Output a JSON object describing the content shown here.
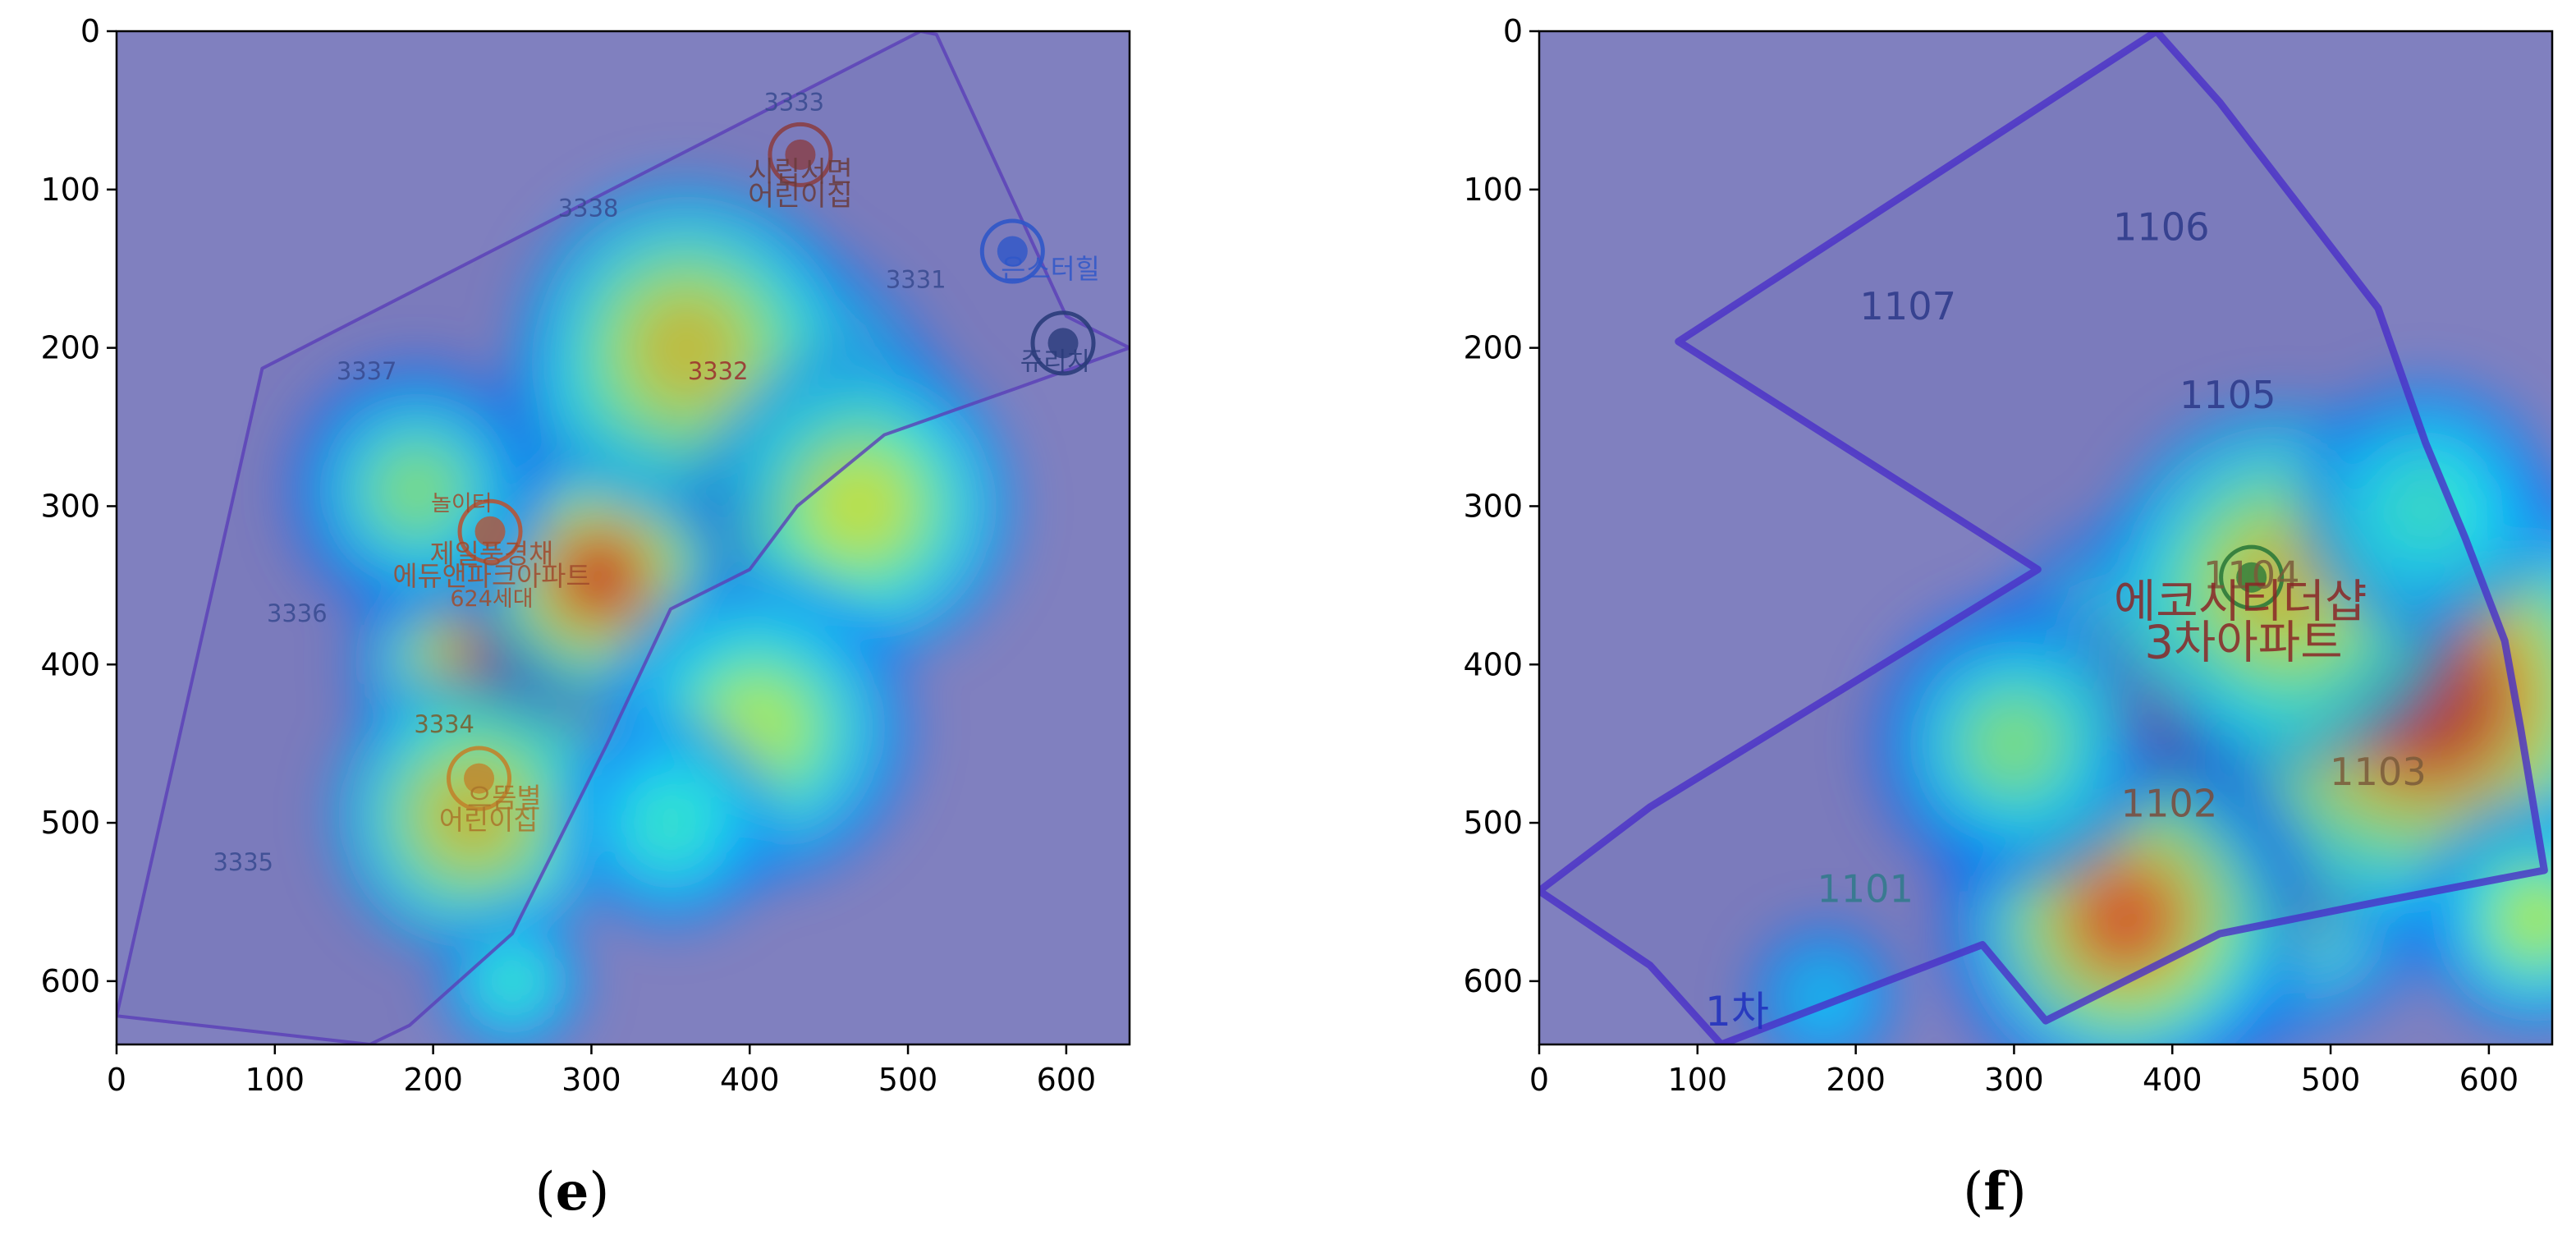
{
  "chart_data": [
    {
      "type": "heatmap",
      "panel_label": "(e)",
      "panel_letter": "e",
      "xlim": [
        0,
        640
      ],
      "ylim": [
        640,
        0
      ],
      "xticks": [
        0,
        100,
        200,
        300,
        400,
        500,
        600
      ],
      "yticks": [
        0,
        100,
        200,
        300,
        400,
        500,
        600
      ],
      "background": "#8181c0",
      "boundary_color": "#5a3fb8",
      "boundary": [
        [
          0,
          622
        ],
        [
          92,
          213
        ],
        [
          508,
          0
        ],
        [
          518,
          2
        ],
        [
          600,
          180
        ],
        [
          640,
          200
        ],
        [
          570,
          225
        ],
        [
          485,
          255
        ],
        [
          430,
          300
        ],
        [
          400,
          340
        ],
        [
          350,
          365
        ],
        [
          310,
          450
        ],
        [
          250,
          570
        ],
        [
          185,
          628
        ],
        [
          160,
          640
        ],
        [
          0,
          622
        ]
      ],
      "hotspots": [
        {
          "x": 385,
          "y": 270,
          "radius": 150,
          "intensity": 1.0
        },
        {
          "x": 255,
          "y": 400,
          "radius": 110,
          "intensity": 0.95
        },
        {
          "x": 305,
          "y": 345,
          "radius": 90,
          "intensity": 0.9
        },
        {
          "x": 360,
          "y": 200,
          "radius": 130,
          "intensity": 0.7
        },
        {
          "x": 470,
          "y": 300,
          "radius": 120,
          "intensity": 0.65
        },
        {
          "x": 225,
          "y": 495,
          "radius": 110,
          "intensity": 0.7
        },
        {
          "x": 405,
          "y": 440,
          "radius": 120,
          "intensity": 0.6
        },
        {
          "x": 190,
          "y": 290,
          "radius": 100,
          "intensity": 0.55
        },
        {
          "x": 250,
          "y": 600,
          "radius": 70,
          "intensity": 0.45
        },
        {
          "x": 350,
          "y": 500,
          "radius": 100,
          "intensity": 0.45
        }
      ],
      "map_labels": [
        {
          "text": "시립서면",
          "x": 432,
          "y": 95,
          "size": 18,
          "color": "#6a3b3b"
        },
        {
          "text": "어린이집",
          "x": 432,
          "y": 110,
          "size": 18,
          "color": "#6a3b3b"
        },
        {
          "text": "은스터힐",
          "x": 590,
          "y": 156,
          "size": 17,
          "color": "#2f57c8"
        },
        {
          "text": "쥬리치",
          "x": 593,
          "y": 214,
          "size": 16,
          "color": "#2a3c7a"
        },
        {
          "text": "놀이터",
          "x": 218,
          "y": 303,
          "size": 14,
          "color": "#a04a2c"
        },
        {
          "text": "제일풍경채",
          "x": 237,
          "y": 336,
          "size": 17,
          "color": "#a04a2c"
        },
        {
          "text": "에듀앤파크아파트",
          "x": 237,
          "y": 350,
          "size": 17,
          "color": "#a04a2c"
        },
        {
          "text": "624세대",
          "x": 237,
          "y": 363,
          "size": 14,
          "color": "#a04a2c"
        },
        {
          "text": "으뜸별",
          "x": 245,
          "y": 490,
          "size": 17,
          "color": "#a9742a"
        },
        {
          "text": "어린이집",
          "x": 235,
          "y": 504,
          "size": 17,
          "color": "#a9742a"
        },
        {
          "text": "3333",
          "x": 428,
          "y": 50,
          "size": 15,
          "color": "#374a8f"
        },
        {
          "text": "3338",
          "x": 298,
          "y": 117,
          "size": 15,
          "color": "#374a8f"
        },
        {
          "text": "3331",
          "x": 505,
          "y": 162,
          "size": 15,
          "color": "#374a8f"
        },
        {
          "text": "3337",
          "x": 158,
          "y": 220,
          "size": 15,
          "color": "#374a8f"
        },
        {
          "text": "3332",
          "x": 380,
          "y": 220,
          "size": 15,
          "color": "#9a2d2d"
        },
        {
          "text": "3336",
          "x": 114,
          "y": 373,
          "size": 15,
          "color": "#374a8f"
        },
        {
          "text": "3334",
          "x": 207,
          "y": 443,
          "size": 15,
          "color": "#7a5a2a"
        },
        {
          "text": "3335",
          "x": 80,
          "y": 530,
          "size": 15,
          "color": "#374a8f"
        }
      ],
      "map_markers": [
        {
          "x": 432,
          "y": 78,
          "color": "#8a3f45"
        },
        {
          "x": 566,
          "y": 139,
          "color": "#2f57c8"
        },
        {
          "x": 598,
          "y": 197,
          "color": "#2a3c7a"
        },
        {
          "x": 236,
          "y": 316,
          "color": "#b2553a"
        },
        {
          "x": 229,
          "y": 472,
          "color": "#c0842c"
        }
      ]
    },
    {
      "type": "heatmap",
      "panel_label": "(f)",
      "panel_letter": "f",
      "xlim": [
        0,
        640
      ],
      "ylim": [
        640,
        0
      ],
      "xticks": [
        0,
        100,
        200,
        300,
        400,
        500,
        600
      ],
      "yticks": [
        0,
        100,
        200,
        300,
        400,
        500,
        600
      ],
      "background": "#8181c0",
      "boundary_color": "#4a2fc8",
      "boundary": [
        [
          88,
          196
        ],
        [
          390,
          0
        ],
        [
          430,
          45
        ],
        [
          530,
          175
        ],
        [
          560,
          260
        ],
        [
          585,
          320
        ],
        [
          610,
          385
        ],
        [
          620,
          440
        ],
        [
          635,
          530
        ],
        [
          530,
          550
        ],
        [
          430,
          570
        ],
        [
          320,
          625
        ],
        [
          280,
          577
        ],
        [
          115,
          640
        ],
        [
          70,
          590
        ],
        [
          0,
          543
        ],
        [
          70,
          490
        ],
        [
          315,
          340
        ],
        [
          88,
          196
        ]
      ],
      "hotspots": [
        {
          "x": 430,
          "y": 470,
          "radius": 180,
          "intensity": 1.0
        },
        {
          "x": 560,
          "y": 420,
          "radius": 160,
          "intensity": 0.95
        },
        {
          "x": 370,
          "y": 560,
          "radius": 120,
          "intensity": 0.85
        },
        {
          "x": 470,
          "y": 350,
          "radius": 140,
          "intensity": 0.7
        },
        {
          "x": 300,
          "y": 450,
          "radius": 110,
          "intensity": 0.55
        },
        {
          "x": 630,
          "y": 560,
          "radius": 90,
          "intensity": 0.6
        },
        {
          "x": 560,
          "y": 300,
          "radius": 120,
          "intensity": 0.45
        },
        {
          "x": 180,
          "y": 610,
          "radius": 90,
          "intensity": 0.35
        }
      ],
      "map_labels": [
        {
          "text": "1106",
          "x": 393,
          "y": 132,
          "size": 24,
          "color": "#2c3888"
        },
        {
          "text": "1107",
          "x": 233,
          "y": 182,
          "size": 24,
          "color": "#2c3888"
        },
        {
          "text": "1105",
          "x": 435,
          "y": 238,
          "size": 24,
          "color": "#2c3888"
        },
        {
          "text": "1104",
          "x": 450,
          "y": 352,
          "size": 24,
          "color": "#7a5a3a"
        },
        {
          "text": "에코시티더샵",
          "x": 443,
          "y": 370,
          "size": 29,
          "color": "#8a2626"
        },
        {
          "text": "3차아파트",
          "x": 445,
          "y": 396,
          "size": 29,
          "color": "#8a2626"
        },
        {
          "text": "1103",
          "x": 530,
          "y": 476,
          "size": 24,
          "color": "#7a5a3a"
        },
        {
          "text": "1102",
          "x": 398,
          "y": 496,
          "size": 24,
          "color": "#7a4a3a"
        },
        {
          "text": "1101",
          "x": 206,
          "y": 550,
          "size": 24,
          "color": "#2f7a8a"
        },
        {
          "text": "1차",
          "x": 125,
          "y": 628,
          "size": 26,
          "color": "#1e2fbd"
        }
      ],
      "map_markers": [
        {
          "x": 450,
          "y": 345,
          "color": "#2e7a3a"
        }
      ]
    }
  ]
}
